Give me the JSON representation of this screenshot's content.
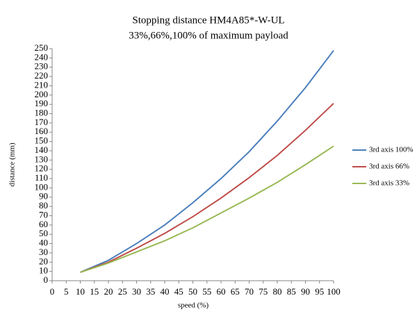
{
  "chart_data": {
    "type": "line",
    "title": "Stopping distance HM4A85*-W-UL",
    "subtitle": "33%,66%,100% of maximum payload",
    "x_label": "speed (%)",
    "y_label": "distance (mm)",
    "x": [
      10,
      20,
      30,
      40,
      50,
      60,
      70,
      80,
      90,
      100
    ],
    "series": [
      {
        "name": "3rd axis 100%",
        "color": "#4a7ebb",
        "values": [
          9,
          22,
          40,
          60,
          84,
          110,
          139,
          172,
          208,
          248
        ]
      },
      {
        "name": "3rd axis 66%",
        "color": "#be4b48",
        "values": [
          9,
          20,
          35,
          51,
          69,
          89,
          111,
          135,
          162,
          191
        ]
      },
      {
        "name": "3rd axis 33%",
        "color": "#98b954",
        "values": [
          9,
          19,
          31,
          43,
          57,
          73,
          89,
          106,
          125,
          145
        ]
      }
    ],
    "xlim": [
      0,
      100
    ],
    "xticks": [
      0,
      5,
      10,
      15,
      20,
      25,
      30,
      35,
      40,
      45,
      50,
      55,
      60,
      65,
      70,
      75,
      80,
      85,
      90,
      95,
      100
    ],
    "ylim": [
      0,
      250
    ],
    "yticks": [
      0,
      10,
      20,
      30,
      40,
      50,
      60,
      70,
      80,
      90,
      100,
      110,
      120,
      130,
      140,
      150,
      160,
      170,
      180,
      190,
      200,
      210,
      220,
      230,
      240,
      250
    ],
    "grid": false,
    "legend": "right"
  }
}
